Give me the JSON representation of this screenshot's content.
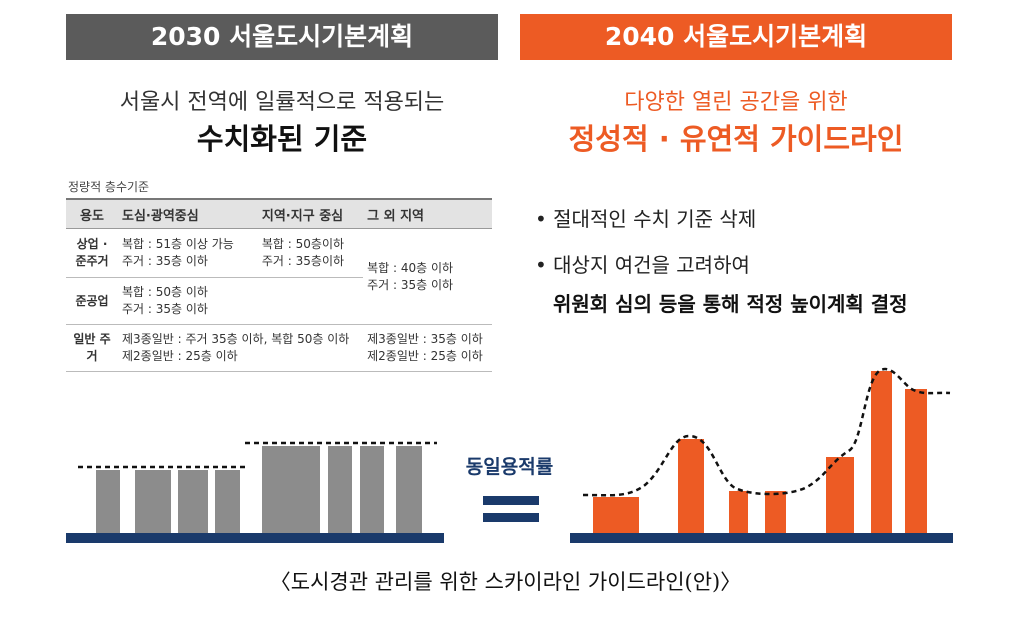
{
  "left_panel": {
    "header": "2030 서울도시기본계획",
    "subtitle": "서울시 전역에 일률적으로 적용되는",
    "headline": "수치화된 기준",
    "table_caption": "정량적 층수기준",
    "table": {
      "headers": [
        "용도",
        "도심·광역중심",
        "지역·지구 중심",
        "그 외 지역"
      ],
      "rows": [
        {
          "use": "상업 · 준주거",
          "col1": "복합 : 51층 이상 가능\n주거 : 35층 이하",
          "col2": "복합 : 50층이하\n주거 : 35층이하"
        },
        {
          "use": "준공업",
          "col1": "복합 : 50층 이하\n주거 : 35층 이하"
        },
        {
          "use": "일반 주거",
          "col12": "제3종일반 : 주거 35층 이하, 복합 50층 이하\n제2종일반 : 25층 이하",
          "col3": "제3종일반 : 35층 이하\n제2종일반 : 25층 이하"
        }
      ],
      "merged_other": "복합 : 40층 이하\n주거 : 35층 이하"
    }
  },
  "right_panel": {
    "header": "2040 서울도시기본계획",
    "subtitle": "다양한 열린 공간을 위한",
    "headline": "정성적 · 유연적 가이드라인",
    "bullets": [
      "• 절대적인 수치 기준 삭제",
      "• 대상지 여건을 고려하여"
    ],
    "bullet_bold": "위원회 심의 등을 통해 적정 높이계획 결정"
  },
  "equation_label": "동일용적률",
  "colors": {
    "gray_header": "#5b5b5b",
    "orange": "#ed5b24",
    "navy": "#1a3a6b",
    "gray_bar": "#8c8c8c"
  },
  "caption": "〈도시경관 관리를 위한 스카이라인 가이드라인(안)〉"
}
